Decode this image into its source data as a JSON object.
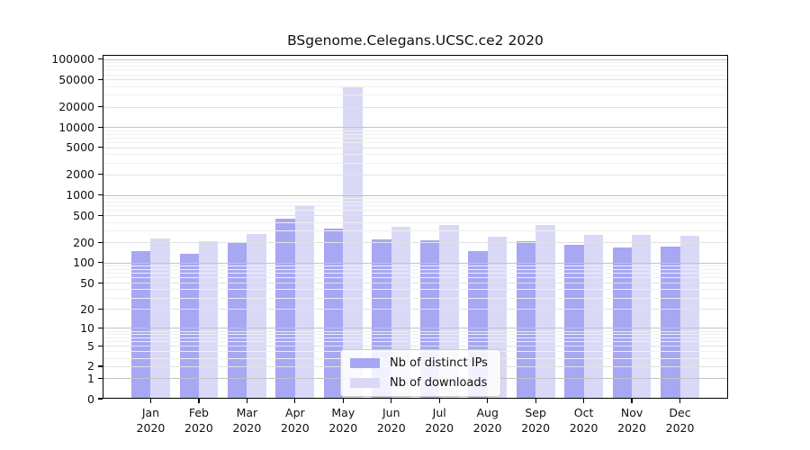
{
  "chart_data": {
    "type": "bar",
    "title": "BSgenome.Celegans.UCSC.ce2 2020",
    "categories": [
      "Jan 2020",
      "Feb 2020",
      "Mar 2020",
      "Apr 2020",
      "May 2020",
      "Jun 2020",
      "Jul 2020",
      "Aug 2020",
      "Sep 2020",
      "Oct 2020",
      "Nov 2020",
      "Dec 2020"
    ],
    "series": [
      {
        "name": "Nb of distinct IPs",
        "color": "#a7a7f3",
        "values": [
          150,
          135,
          195,
          440,
          320,
          220,
          215,
          150,
          210,
          185,
          170,
          175
        ]
      },
      {
        "name": "Nb of downloads",
        "color": "#d9d9f7",
        "values": [
          225,
          205,
          265,
          700,
          40000,
          340,
          360,
          240,
          355,
          260,
          260,
          250
        ]
      }
    ],
    "xlabel": "",
    "ylabel": "",
    "y_scale": "log1p",
    "y_ticks": [
      0,
      1,
      2,
      5,
      10,
      20,
      50,
      100,
      200,
      500,
      1000,
      2000,
      5000,
      10000,
      20000,
      50000,
      100000
    ],
    "ylim": [
      0,
      115500
    ],
    "grid": true,
    "legend_position": "lower center",
    "colors": {
      "major_grid": "#c3c3c3",
      "labeled_grid": "#e2e2e2",
      "minor_grid": "#efefef",
      "spine": "#000000",
      "text": "#111111",
      "background": "#ffffff"
    }
  }
}
